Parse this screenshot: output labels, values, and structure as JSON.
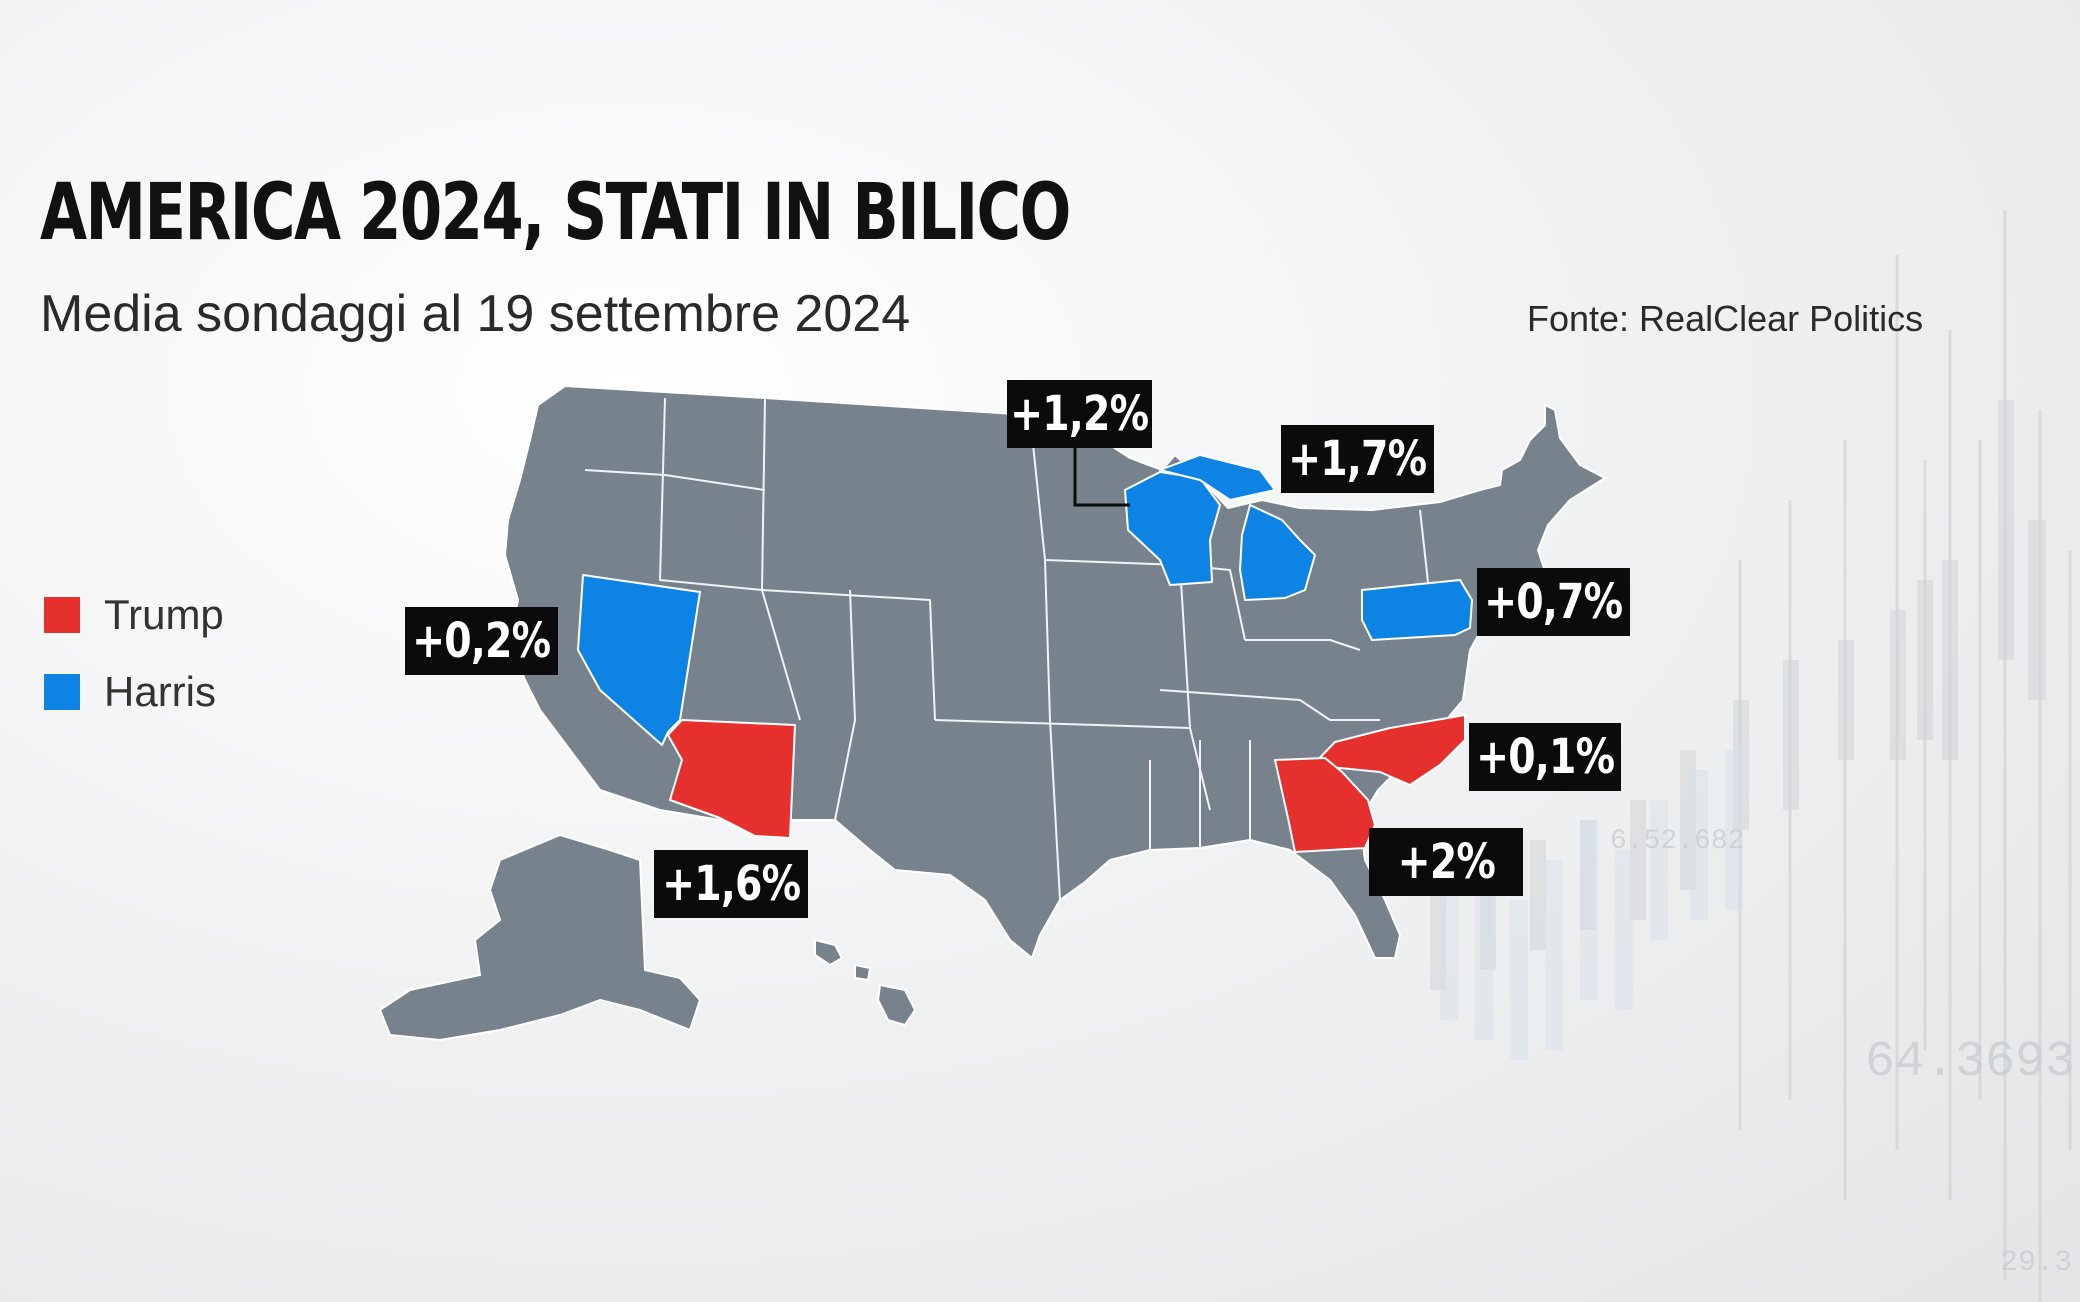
{
  "title": "AMERICA 2024, STATI IN BILICO",
  "subtitle": "Media sondaggi al 19 settembre 2024",
  "source": "Fonte: RealClear Politics",
  "colors": {
    "trump": "#e5302d",
    "harris": "#0d84e3",
    "other_states": "#78828d",
    "label_bg": "#0b0b0b"
  },
  "legend": [
    {
      "name": "Trump",
      "color": "#e5302d"
    },
    {
      "name": "Harris",
      "color": "#0d84e3"
    }
  ],
  "states": [
    {
      "state": "Minnesota",
      "margin": "+1,2%",
      "leader": "Harris"
    },
    {
      "state": "Michigan",
      "margin": "+1,7%",
      "leader": "Harris"
    },
    {
      "state": "Pennsylvania",
      "margin": "+0,7%",
      "leader": "Harris"
    },
    {
      "state": "Nevada",
      "margin": "+0,2%",
      "leader": "Harris"
    },
    {
      "state": "North Carolina",
      "margin": "+0,1%",
      "leader": "Trump"
    },
    {
      "state": "Georgia",
      "margin": "+2%",
      "leader": "Trump"
    },
    {
      "state": "Arizona",
      "margin": "+1,6%",
      "leader": "Trump"
    }
  ],
  "background_numbers": [
    "64.3693",
    "6.52.682",
    "29.3"
  ]
}
